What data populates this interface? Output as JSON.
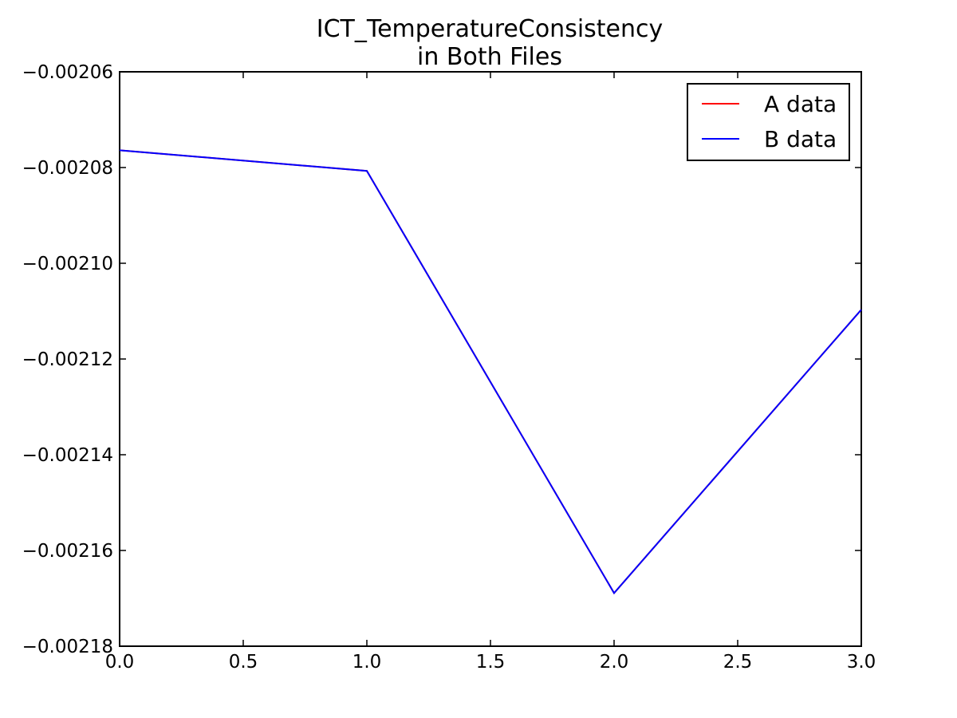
{
  "chart_data": {
    "type": "line",
    "title": "ICT_TemperatureConsistency",
    "subtitle": "in Both Files",
    "xlabel": "",
    "ylabel": "",
    "x": [
      0,
      1,
      2,
      3
    ],
    "xlim": [
      0,
      3
    ],
    "ylim": [
      -0.00218,
      -0.00206
    ],
    "x_ticks": [
      0.0,
      0.5,
      1.0,
      1.5,
      2.0,
      2.5,
      3.0
    ],
    "x_tick_labels": [
      "0.0",
      "0.5",
      "1.0",
      "1.5",
      "2.0",
      "2.5",
      "3.0"
    ],
    "y_ticks": [
      -0.00206,
      -0.00208,
      -0.0021,
      -0.00212,
      -0.00214,
      -0.00216,
      -0.00218
    ],
    "y_tick_labels": [
      "−0.00206",
      "−0.00208",
      "−0.00210",
      "−0.00212",
      "−0.00214",
      "−0.00216",
      "−0.00218"
    ],
    "grid": false,
    "legend": "top-right",
    "series": [
      {
        "name": "A data",
        "color": "#ff0000",
        "values": [
          -0.0020764,
          -0.0020807,
          -0.0021689,
          -0.0021097
        ]
      },
      {
        "name": "B data",
        "color": "#0000ff",
        "values": [
          -0.0020764,
          -0.0020807,
          -0.0021689,
          -0.0021097
        ]
      }
    ]
  }
}
